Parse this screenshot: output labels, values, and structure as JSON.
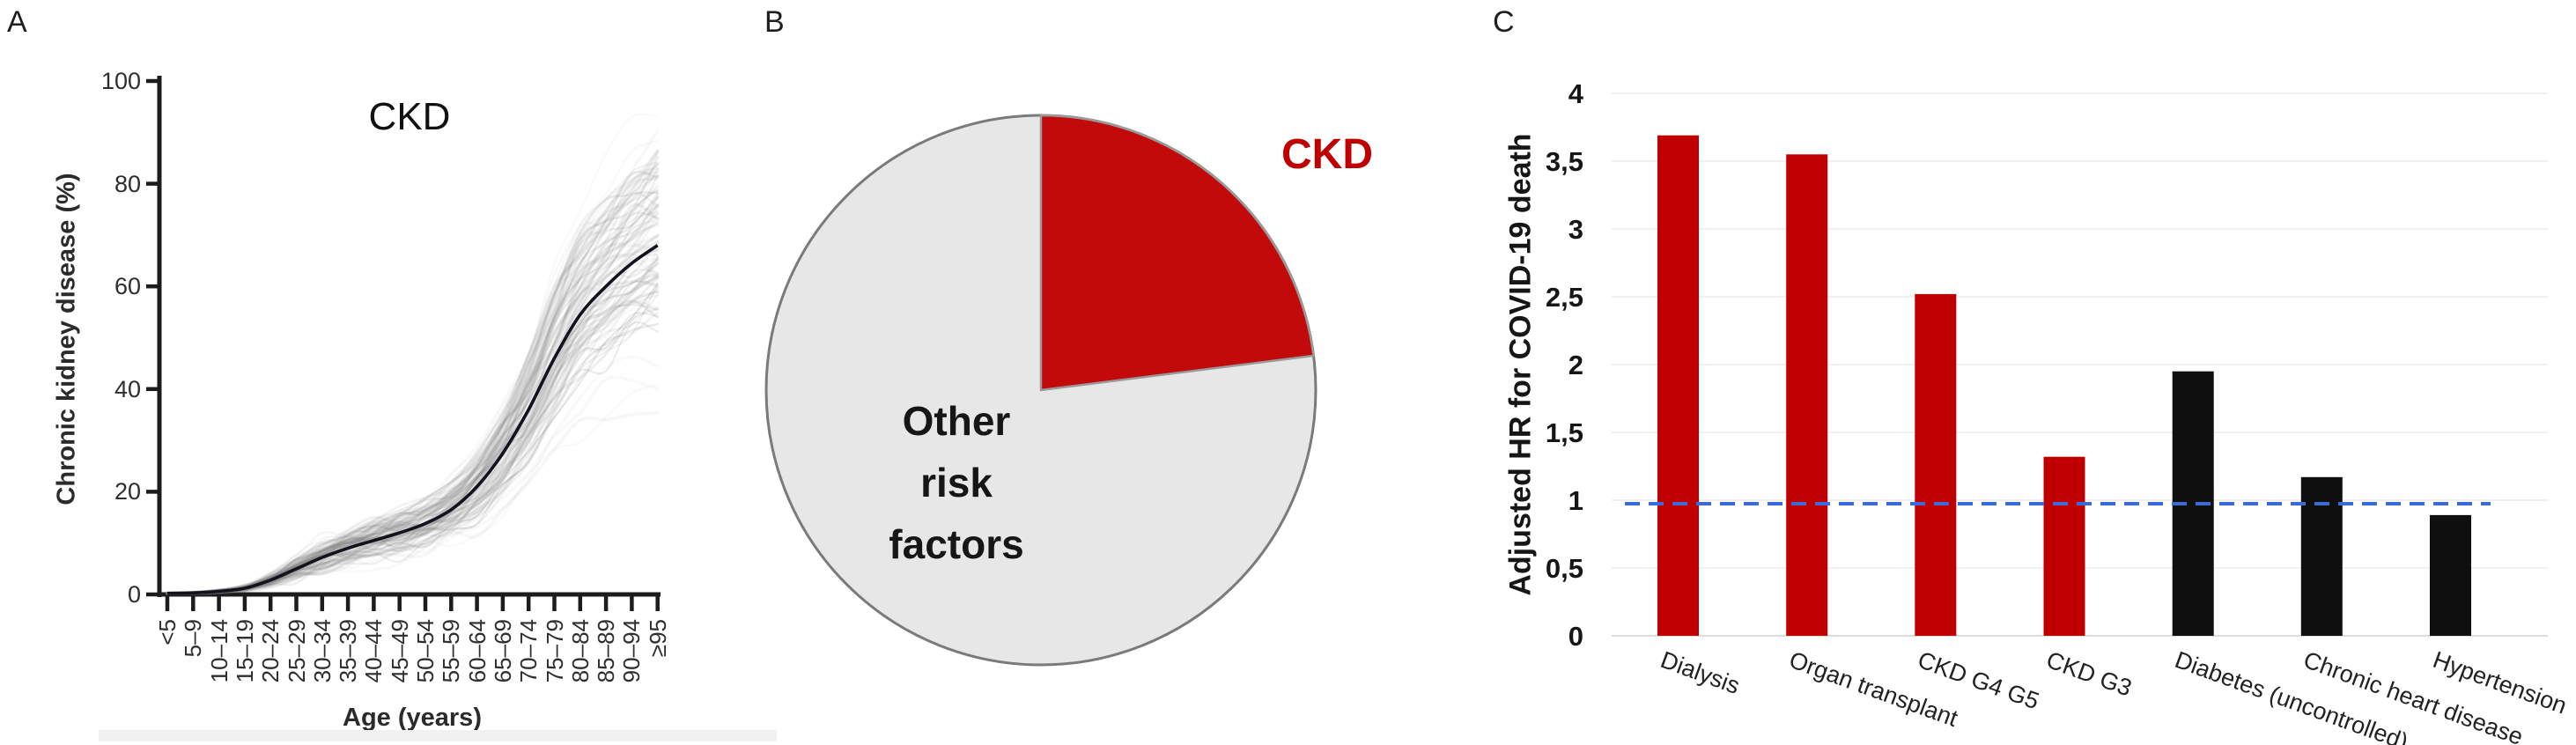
{
  "panel_a": {
    "label": "A"
  },
  "panel_b": {
    "label": "B"
  },
  "panel_c": {
    "label": "C"
  },
  "chart_data": [
    {
      "id": "ckd-prevalence-by-age",
      "type": "line",
      "title": "CKD",
      "xlabel": "Age (years)",
      "ylabel": "Chronic kidney disease (%)",
      "ylim": [
        0,
        100
      ],
      "yticks": [
        0,
        20,
        40,
        60,
        80,
        100
      ],
      "grid": false,
      "legend": false,
      "categories": [
        "<5",
        "5–9",
        "10–14",
        "15–19",
        "20–24",
        "25–29",
        "30–34",
        "35–39",
        "40–44",
        "45–49",
        "50–54",
        "55–59",
        "60–64",
        "65–69",
        "70–74",
        "75–79",
        "80–84",
        "85–89",
        "90–94",
        "≥95"
      ],
      "series": [
        {
          "name": "mean-prevalence",
          "color": "#12121c",
          "values": [
            0.2,
            0.3,
            0.6,
            1.2,
            2.8,
            5,
            7.2,
            9,
            10.5,
            12,
            13.8,
            16.5,
            21,
            27.5,
            36,
            46,
            54.5,
            60,
            64.5,
            68
          ]
        }
      ],
      "ensemble": {
        "description": "many translucent grey curves forming a band around the mean",
        "count": 88,
        "seed": 11,
        "spread": [
          0.1,
          0.15,
          0.3,
          0.6,
          1.3,
          2.2,
          3,
          3.4,
          3.5,
          3.5,
          3.4,
          3.6,
          4,
          4.6,
          5.2,
          5.6,
          6,
          6.6,
          7.2,
          8.5
        ]
      }
    },
    {
      "id": "risk-factor-share",
      "type": "pie",
      "start_angle_deg": 0,
      "direction": "clockwise",
      "border_color": "#7a7a7a",
      "slices": [
        {
          "label": "CKD",
          "value": 23,
          "color": "#C20A0A",
          "label_color": "#C00000"
        },
        {
          "label": "Other risk factors",
          "value": 77,
          "color": "#E8E7E7",
          "label_color": "#161616"
        }
      ]
    },
    {
      "id": "hr-covid-death",
      "type": "bar",
      "ylabel": "Adjusted HR for COVID-19 death",
      "ylim": [
        0,
        4
      ],
      "ytick_step": 0.5,
      "ytick_labels": [
        "0",
        "0,5",
        "1",
        "1,5",
        "2",
        "2,5",
        "3",
        "3,5",
        "4"
      ],
      "grid": true,
      "legend": false,
      "categories": [
        "Dialysis",
        "Organ transplant",
        "CKD G4 G5",
        "CKD G3",
        "Diabetes (uncontrolled)",
        "Chronic heart disease",
        "Hypertension"
      ],
      "values": [
        3.69,
        3.55,
        2.52,
        1.32,
        1.95,
        1.17,
        0.89
      ],
      "bar_colors": [
        "#C00000",
        "#C00000",
        "#C00000",
        "#C00000",
        "#0f0f0f",
        "#0f0f0f",
        "#0f0f0f"
      ],
      "reference_line": {
        "value": 1,
        "color": "#3A6BD6",
        "style": "dashed"
      }
    }
  ],
  "colors": {
    "accent_red": "#C00000",
    "bar_black": "#0f0f0f",
    "reference_blue": "#3A6BD6",
    "pie_gray": "#E8E7E7",
    "pie_border": "#7a7a7a",
    "gridline": "#ececec"
  }
}
